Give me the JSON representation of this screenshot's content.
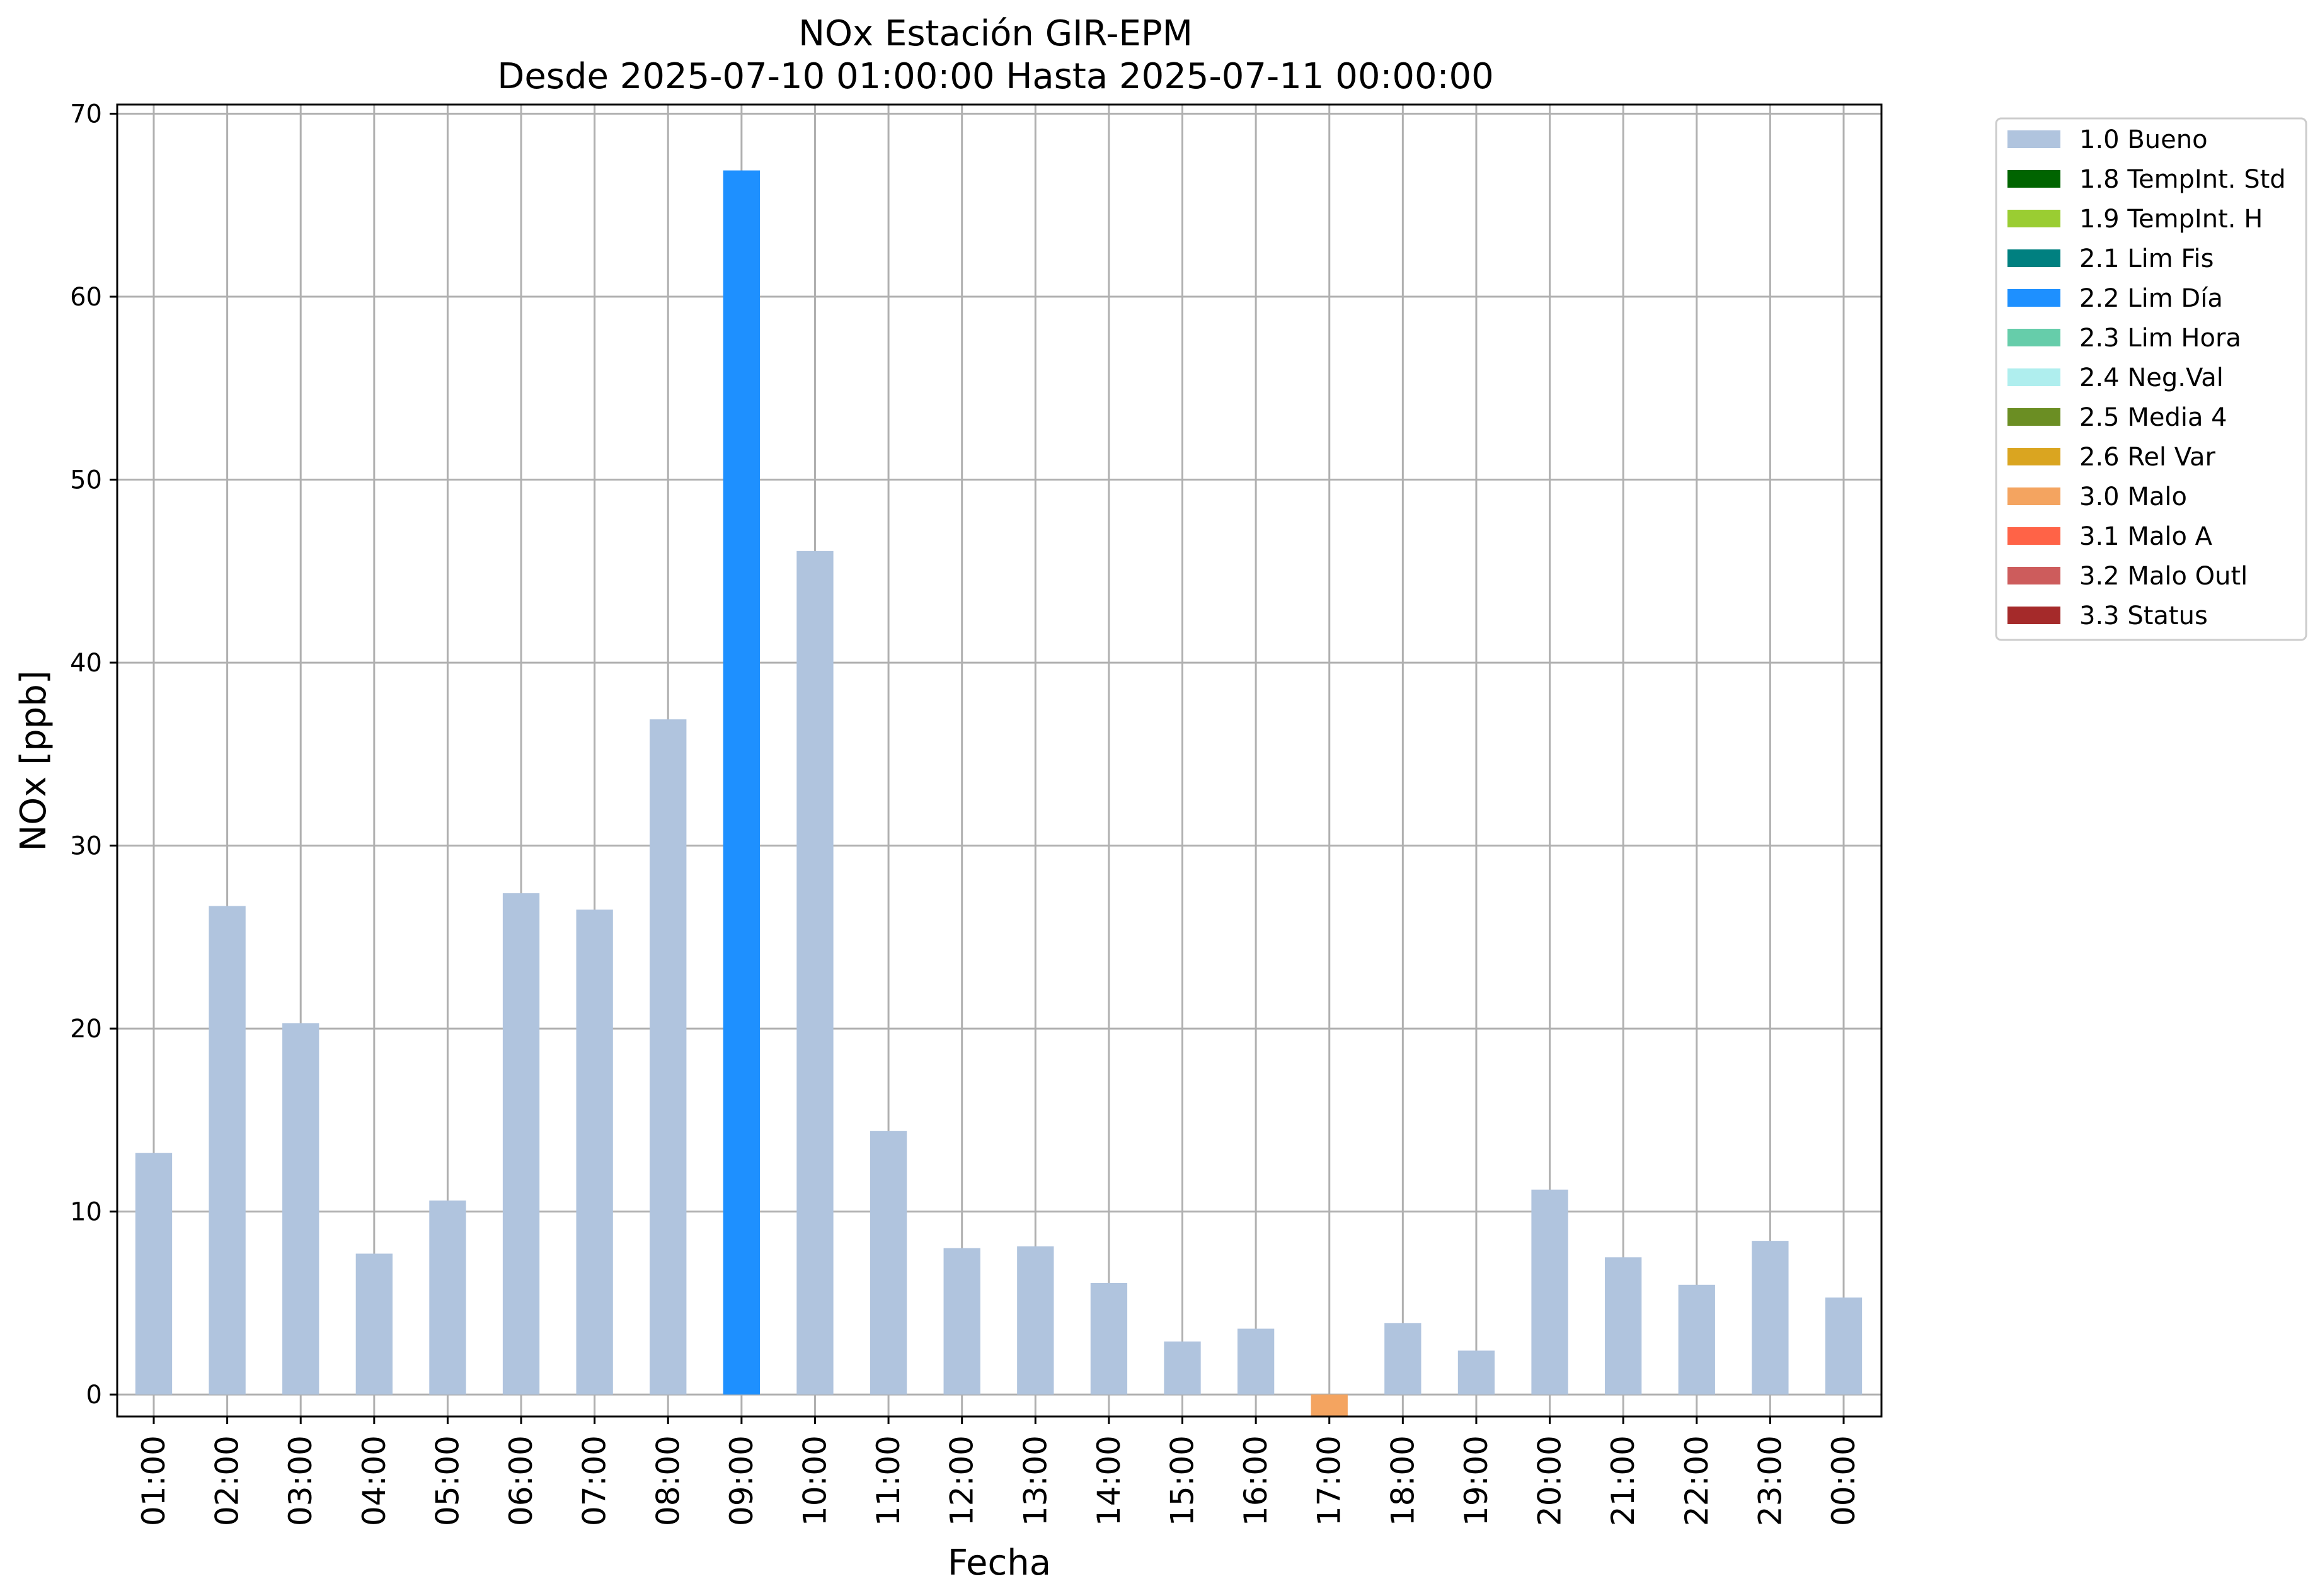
{
  "chart_data": {
    "type": "bar",
    "title": "NOx Estación GIR-EPM",
    "subtitle": "Desde 2025-07-10 01:00:00 Hasta 2025-07-11 00:00:00",
    "xlabel": "Fecha",
    "ylabel": "NOx [ppb]",
    "ylim": [
      -1.2,
      70.5
    ],
    "yticks": [
      0,
      10,
      20,
      30,
      40,
      50,
      60,
      70
    ],
    "grid": true,
    "legend_position": "outside-top-right",
    "categories": [
      "01:00",
      "02:00",
      "03:00",
      "04:00",
      "05:00",
      "06:00",
      "07:00",
      "08:00",
      "09:00",
      "10:00",
      "11:00",
      "12:00",
      "13:00",
      "14:00",
      "15:00",
      "16:00",
      "17:00",
      "18:00",
      "19:00",
      "20:00",
      "21:00",
      "22:00",
      "23:00",
      "00:00"
    ],
    "values": [
      13.2,
      26.7,
      20.3,
      7.7,
      10.6,
      27.4,
      26.5,
      36.9,
      66.9,
      46.1,
      14.4,
      8.0,
      8.1,
      6.1,
      2.9,
      3.6,
      -1.2,
      3.9,
      2.4,
      11.2,
      7.5,
      6.0,
      8.4,
      5.3
    ],
    "flags": [
      "1.0 Bueno",
      "1.0 Bueno",
      "1.0 Bueno",
      "1.0 Bueno",
      "1.0 Bueno",
      "1.0 Bueno",
      "1.0 Bueno",
      "1.0 Bueno",
      "2.2 Lim Día",
      "1.0 Bueno",
      "1.0 Bueno",
      "1.0 Bueno",
      "1.0 Bueno",
      "1.0 Bueno",
      "1.0 Bueno",
      "1.0 Bueno",
      "3.0 Malo",
      "1.0 Bueno",
      "1.0 Bueno",
      "1.0 Bueno",
      "1.0 Bueno",
      "1.0 Bueno",
      "1.0 Bueno",
      "1.0 Bueno"
    ],
    "legend": [
      {
        "label": "1.0 Bueno",
        "color": "#b0c4de"
      },
      {
        "label": "1.8 TempInt. Std",
        "color": "#006400"
      },
      {
        "label": "1.9 TempInt. H",
        "color": "#9acd32"
      },
      {
        "label": "2.1 Lim Fis",
        "color": "#008080"
      },
      {
        "label": "2.2 Lim Día",
        "color": "#1e90ff"
      },
      {
        "label": "2.3 Lim Hora",
        "color": "#66cdaa"
      },
      {
        "label": "2.4 Neg.Val",
        "color": "#afeeee"
      },
      {
        "label": "2.5 Media 4",
        "color": "#6b8e23"
      },
      {
        "label": "2.6 Rel Var",
        "color": "#daa520"
      },
      {
        "label": "3.0 Malo",
        "color": "#f4a460"
      },
      {
        "label": "3.1 Malo A",
        "color": "#ff6347"
      },
      {
        "label": "3.2 Malo Outl",
        "color": "#cd5c5c"
      },
      {
        "label": "3.3 Status",
        "color": "#a52a2a"
      }
    ]
  }
}
